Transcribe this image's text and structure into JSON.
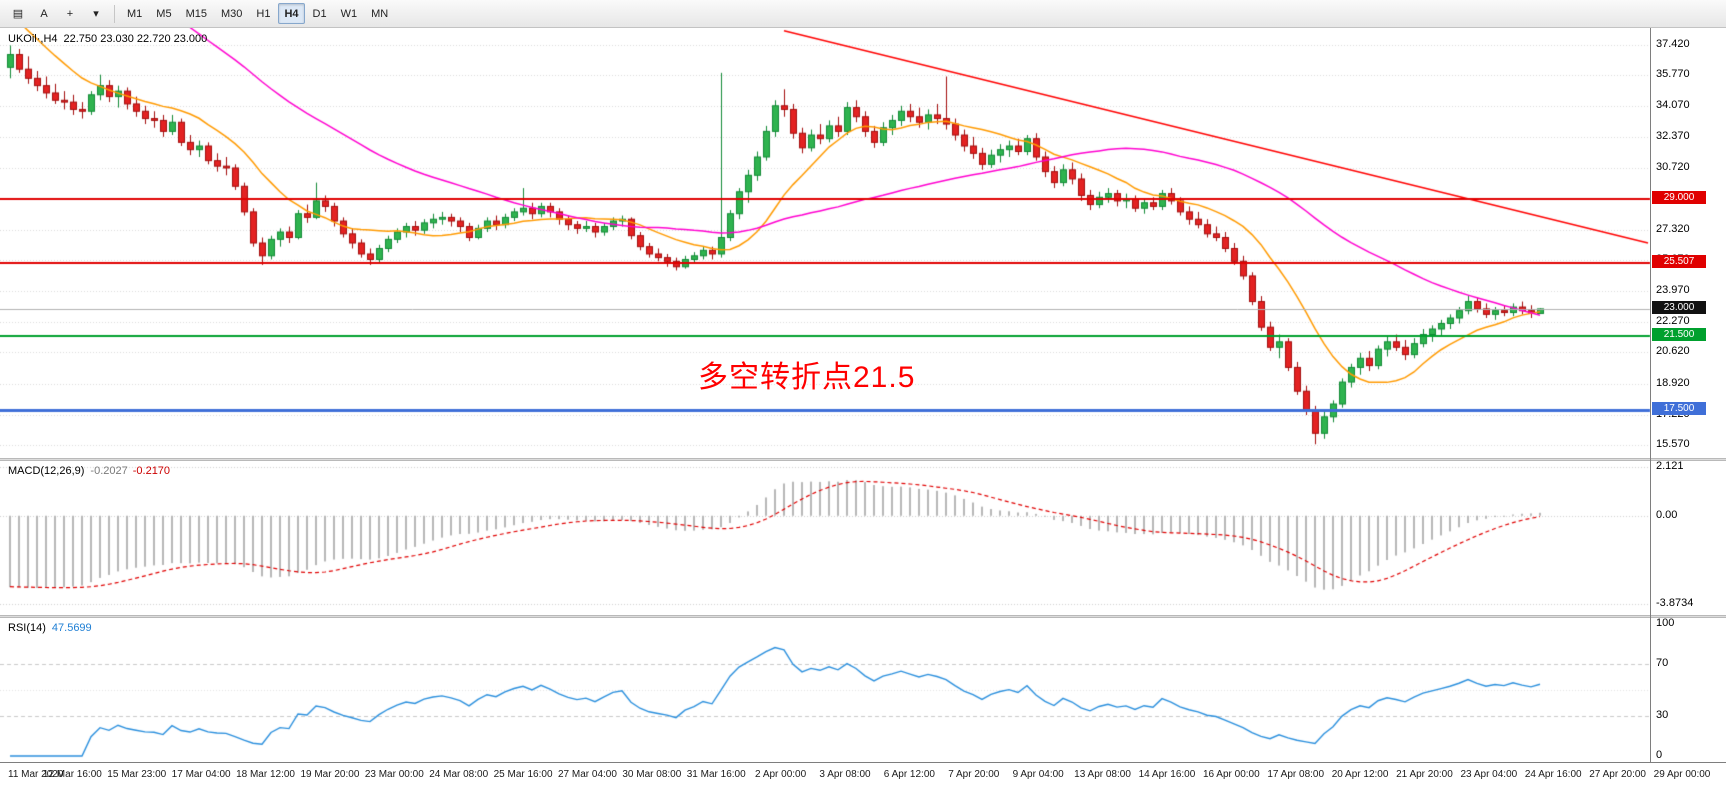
{
  "window": {
    "symbol_label": "UKOil·,H4",
    "ohlc_text": "22.750 23.030 22.720 23.000"
  },
  "toolbar": {
    "left_buttons": [
      {
        "id": "chart-type",
        "glyph": "▤",
        "name": "chart-type-button"
      },
      {
        "id": "text-tool",
        "glyph": "A",
        "name": "text-tool-button"
      },
      {
        "id": "crosshair",
        "glyph": "+",
        "name": "crosshair-tool-button"
      },
      {
        "id": "draw-tools",
        "glyph": "▾",
        "name": "draw-tools-dropdown"
      }
    ],
    "timeframes": [
      "M1",
      "M5",
      "M15",
      "M30",
      "H1",
      "H4",
      "D1",
      "W1",
      "MN"
    ],
    "active_timeframe": "H4"
  },
  "chart": {
    "price_axis_labels": [
      "37.420",
      "35.770",
      "34.070",
      "32.370",
      "30.720",
      "29.020",
      "27.320",
      "25.670",
      "23.970",
      "22.270",
      "20.620",
      "18.920",
      "17.220",
      "15.570"
    ],
    "levels": [
      {
        "value": 29.0,
        "label": "29.000",
        "line_color": "#e00000",
        "badge_color": "#e00000",
        "line_width": 2
      },
      {
        "value": 25.507,
        "label": "25.507",
        "line_color": "#e00000",
        "badge_color": "#e00000",
        "line_width": 2
      },
      {
        "value": 23.0,
        "label": "23.000",
        "line_color": "#b0b0b0",
        "badge_color": "#111111",
        "line_width": 1
      },
      {
        "value": 21.5,
        "label": "21.500",
        "line_color": "#00a02e",
        "badge_color": "#00a02e",
        "line_width": 2
      },
      {
        "value": 17.5,
        "label": "17.500",
        "line_color": "#3f6fd8",
        "badge_color": "#3f6fd8",
        "line_width": 3
      }
    ],
    "annotation": {
      "text": "多空转折点21.5",
      "color": "#ff0000"
    },
    "time_axis_labels": [
      "11 Mar 2020",
      "12 Mar 16:00",
      "15 Mar 23:00",
      "17 Mar 04:00",
      "18 Mar 12:00",
      "19 Mar 20:00",
      "23 Mar 00:00",
      "24 Mar 08:00",
      "25 Mar 16:00",
      "27 Mar 04:00",
      "30 Mar 08:00",
      "31 Mar 16:00",
      "2 Apr 00:00",
      "3 Apr 08:00",
      "6 Apr 12:00",
      "7 Apr 20:00",
      "9 Apr 04:00",
      "13 Apr 08:00",
      "14 Apr 16:00",
      "16 Apr 00:00",
      "17 Apr 08:00",
      "20 Apr 12:00",
      "21 Apr 20:00",
      "23 Apr 04:00",
      "24 Apr 16:00",
      "27 Apr 20:00",
      "29 Apr 00:00"
    ]
  },
  "macd_panel": {
    "label": "MACD(12,26,9)",
    "value_main": "-0.2027",
    "value_signal": "-0.2170",
    "scale_labels": [
      "2.121",
      "0.00",
      "-3.8734"
    ]
  },
  "rsi_panel": {
    "label": "RSI(14)",
    "value": "47.5699",
    "scale_labels": [
      "100",
      "70",
      "30",
      "0"
    ]
  },
  "chart_data": {
    "type": "candlestick",
    "symbol": "UKOil",
    "period": "H4",
    "last_bar": {
      "open": 22.75,
      "high": 23.03,
      "low": 22.72,
      "close": 23.0
    },
    "y_range": [
      14.85,
      38.35
    ],
    "first_bar_x": 10,
    "bar_spacing": 9,
    "candles": [
      [
        36.2,
        37.4,
        35.6,
        36.9
      ],
      [
        36.9,
        37.2,
        35.9,
        36.1
      ],
      [
        36.1,
        36.8,
        35.3,
        35.6
      ],
      [
        35.6,
        36.0,
        34.9,
        35.2
      ],
      [
        35.2,
        35.7,
        34.5,
        34.8
      ],
      [
        34.8,
        35.3,
        34.2,
        34.4
      ],
      [
        34.4,
        34.9,
        33.9,
        34.3
      ],
      [
        34.3,
        34.7,
        33.6,
        33.9
      ],
      [
        33.9,
        34.3,
        33.4,
        33.8
      ],
      [
        33.8,
        34.9,
        33.6,
        34.7
      ],
      [
        34.7,
        35.8,
        34.4,
        35.2
      ],
      [
        35.2,
        35.5,
        34.3,
        34.6
      ],
      [
        34.6,
        35.2,
        34.0,
        34.9
      ],
      [
        34.9,
        35.1,
        33.9,
        34.2
      ],
      [
        34.2,
        34.6,
        33.5,
        33.8
      ],
      [
        33.8,
        34.1,
        33.1,
        33.4
      ],
      [
        33.4,
        33.8,
        32.9,
        33.3
      ],
      [
        33.3,
        33.6,
        32.4,
        32.7
      ],
      [
        32.7,
        33.6,
        32.5,
        33.2
      ],
      [
        33.2,
        33.4,
        31.9,
        32.1
      ],
      [
        32.1,
        32.5,
        31.4,
        31.7
      ],
      [
        31.7,
        32.2,
        31.3,
        31.9
      ],
      [
        31.9,
        32.1,
        30.9,
        31.1
      ],
      [
        31.1,
        31.5,
        30.5,
        30.8
      ],
      [
        30.8,
        31.3,
        30.3,
        30.7
      ],
      [
        30.7,
        30.9,
        29.5,
        29.7
      ],
      [
        29.7,
        29.9,
        28.1,
        28.3
      ],
      [
        28.3,
        28.5,
        26.4,
        26.6
      ],
      [
        26.6,
        26.9,
        25.4,
        25.9
      ],
      [
        25.9,
        27.0,
        25.7,
        26.8
      ],
      [
        26.8,
        27.4,
        26.4,
        27.2
      ],
      [
        27.2,
        27.5,
        26.6,
        26.9
      ],
      [
        26.9,
        28.4,
        26.8,
        28.2
      ],
      [
        28.2,
        28.7,
        27.7,
        28.0
      ],
      [
        28.0,
        29.9,
        27.9,
        28.9
      ],
      [
        28.9,
        29.2,
        28.3,
        28.6
      ],
      [
        28.6,
        28.8,
        27.5,
        27.8
      ],
      [
        27.8,
        28.0,
        26.9,
        27.1
      ],
      [
        27.1,
        27.4,
        26.3,
        26.6
      ],
      [
        26.6,
        26.8,
        25.8,
        26.0
      ],
      [
        26.0,
        26.3,
        25.4,
        25.7
      ],
      [
        25.7,
        26.5,
        25.5,
        26.3
      ],
      [
        26.3,
        27.0,
        26.1,
        26.8
      ],
      [
        26.8,
        27.4,
        26.6,
        27.2
      ],
      [
        27.2,
        27.7,
        26.9,
        27.5
      ],
      [
        27.5,
        27.8,
        27.0,
        27.3
      ],
      [
        27.3,
        27.9,
        27.1,
        27.7
      ],
      [
        27.7,
        28.2,
        27.4,
        27.9
      ],
      [
        27.9,
        28.3,
        27.6,
        28.0
      ],
      [
        28.0,
        28.2,
        27.5,
        27.8
      ],
      [
        27.8,
        28.0,
        27.2,
        27.5
      ],
      [
        27.5,
        27.7,
        26.7,
        26.9
      ],
      [
        26.9,
        27.6,
        26.8,
        27.4
      ],
      [
        27.4,
        28.0,
        27.2,
        27.8
      ],
      [
        27.8,
        28.1,
        27.3,
        27.6
      ],
      [
        27.6,
        28.2,
        27.4,
        28.0
      ],
      [
        28.0,
        28.5,
        27.8,
        28.3
      ],
      [
        28.3,
        29.6,
        28.1,
        28.5
      ],
      [
        28.5,
        28.8,
        27.9,
        28.2
      ],
      [
        28.2,
        28.8,
        28.0,
        28.6
      ],
      [
        28.6,
        28.8,
        28.0,
        28.3
      ],
      [
        28.3,
        28.5,
        27.6,
        27.9
      ],
      [
        27.9,
        28.1,
        27.3,
        27.6
      ],
      [
        27.6,
        27.8,
        27.1,
        27.4
      ],
      [
        27.4,
        27.8,
        27.2,
        27.5
      ],
      [
        27.5,
        27.7,
        26.9,
        27.2
      ],
      [
        27.2,
        27.7,
        27.0,
        27.5
      ],
      [
        27.5,
        28.0,
        27.3,
        27.8
      ],
      [
        27.8,
        28.1,
        27.5,
        27.9
      ],
      [
        27.9,
        28.0,
        26.8,
        27.0
      ],
      [
        27.0,
        27.2,
        26.2,
        26.4
      ],
      [
        26.4,
        26.6,
        25.8,
        26.0
      ],
      [
        26.0,
        26.3,
        25.6,
        25.8
      ],
      [
        25.8,
        26.0,
        25.3,
        25.6
      ],
      [
        25.6,
        25.8,
        25.1,
        25.3
      ],
      [
        25.3,
        25.9,
        25.2,
        25.7
      ],
      [
        25.7,
        26.1,
        25.5,
        25.9
      ],
      [
        25.9,
        26.4,
        25.7,
        26.2
      ],
      [
        26.2,
        26.4,
        25.7,
        26.0
      ],
      [
        26.0,
        35.9,
        25.8,
        26.9
      ],
      [
        26.9,
        28.4,
        26.7,
        28.2
      ],
      [
        28.2,
        29.6,
        27.9,
        29.4
      ],
      [
        29.4,
        30.6,
        28.8,
        30.3
      ],
      [
        30.3,
        31.6,
        30.0,
        31.3
      ],
      [
        31.3,
        33.0,
        31.1,
        32.7
      ],
      [
        32.7,
        34.4,
        32.4,
        34.1
      ],
      [
        34.1,
        35.0,
        33.5,
        33.9
      ],
      [
        33.9,
        34.2,
        32.3,
        32.6
      ],
      [
        32.6,
        32.9,
        31.5,
        31.8
      ],
      [
        31.8,
        32.8,
        31.6,
        32.5
      ],
      [
        32.5,
        33.1,
        32.0,
        32.3
      ],
      [
        32.3,
        33.3,
        32.1,
        33.0
      ],
      [
        33.0,
        33.5,
        32.4,
        32.7
      ],
      [
        32.7,
        34.3,
        32.5,
        34.0
      ],
      [
        34.0,
        34.4,
        33.2,
        33.5
      ],
      [
        33.5,
        33.8,
        32.4,
        32.7
      ],
      [
        32.7,
        33.0,
        31.8,
        32.1
      ],
      [
        32.1,
        33.2,
        31.9,
        32.9
      ],
      [
        32.9,
        33.6,
        32.5,
        33.3
      ],
      [
        33.3,
        34.1,
        33.0,
        33.8
      ],
      [
        33.8,
        34.2,
        33.2,
        33.5
      ],
      [
        33.5,
        34.0,
        32.9,
        33.2
      ],
      [
        33.2,
        33.9,
        32.8,
        33.6
      ],
      [
        33.6,
        34.2,
        33.1,
        33.4
      ],
      [
        33.4,
        35.7,
        32.8,
        33.1
      ],
      [
        33.1,
        33.4,
        32.2,
        32.5
      ],
      [
        32.5,
        32.8,
        31.6,
        31.9
      ],
      [
        31.9,
        32.4,
        31.2,
        31.5
      ],
      [
        31.5,
        31.8,
        30.6,
        30.9
      ],
      [
        30.9,
        31.7,
        30.7,
        31.4
      ],
      [
        31.4,
        32.0,
        31.0,
        31.7
      ],
      [
        31.7,
        32.2,
        31.3,
        31.9
      ],
      [
        31.9,
        32.3,
        31.4,
        31.6
      ],
      [
        31.6,
        32.5,
        31.4,
        32.3
      ],
      [
        32.3,
        32.6,
        31.1,
        31.3
      ],
      [
        31.3,
        31.6,
        30.2,
        30.5
      ],
      [
        30.5,
        30.8,
        29.6,
        29.9
      ],
      [
        29.9,
        30.9,
        29.7,
        30.6
      ],
      [
        30.6,
        31.0,
        29.8,
        30.1
      ],
      [
        30.1,
        30.4,
        28.9,
        29.2
      ],
      [
        29.2,
        29.5,
        28.4,
        28.7
      ],
      [
        28.7,
        29.4,
        28.5,
        29.1
      ],
      [
        29.1,
        29.6,
        28.8,
        29.3
      ],
      [
        29.3,
        29.5,
        28.6,
        28.9
      ],
      [
        28.9,
        29.3,
        28.5,
        29.0
      ],
      [
        29.0,
        29.2,
        28.3,
        28.5
      ],
      [
        28.5,
        29.0,
        28.2,
        28.8
      ],
      [
        28.8,
        29.1,
        28.4,
        28.6
      ],
      [
        28.6,
        29.5,
        28.4,
        29.3
      ],
      [
        29.3,
        29.6,
        28.7,
        28.9
      ],
      [
        28.9,
        29.1,
        28.1,
        28.3
      ],
      [
        28.3,
        28.6,
        27.6,
        27.9
      ],
      [
        27.9,
        28.3,
        27.4,
        27.6
      ],
      [
        27.6,
        27.9,
        26.9,
        27.1
      ],
      [
        27.1,
        27.5,
        26.7,
        26.9
      ],
      [
        26.9,
        27.2,
        26.1,
        26.3
      ],
      [
        26.3,
        26.6,
        25.4,
        25.6
      ],
      [
        25.6,
        25.9,
        24.6,
        24.8
      ],
      [
        24.8,
        25.0,
        23.2,
        23.4
      ],
      [
        23.4,
        23.7,
        21.8,
        22.0
      ],
      [
        22.0,
        22.3,
        20.7,
        20.9
      ],
      [
        20.9,
        21.6,
        20.3,
        21.2
      ],
      [
        21.2,
        21.4,
        19.6,
        19.8
      ],
      [
        19.8,
        20.1,
        18.3,
        18.5
      ],
      [
        18.5,
        18.8,
        17.2,
        17.4
      ],
      [
        17.4,
        17.7,
        15.6,
        16.2
      ],
      [
        16.2,
        17.4,
        15.9,
        17.1
      ],
      [
        17.1,
        18.0,
        16.8,
        17.8
      ],
      [
        17.8,
        19.2,
        17.6,
        19.0
      ],
      [
        19.0,
        20.0,
        18.7,
        19.8
      ],
      [
        19.8,
        20.6,
        19.4,
        20.3
      ],
      [
        20.3,
        20.7,
        19.6,
        19.9
      ],
      [
        19.9,
        21.0,
        19.7,
        20.8
      ],
      [
        20.8,
        21.5,
        20.4,
        21.2
      ],
      [
        21.2,
        21.6,
        20.7,
        20.9
      ],
      [
        20.9,
        21.3,
        20.2,
        20.5
      ],
      [
        20.5,
        21.4,
        20.3,
        21.1
      ],
      [
        21.1,
        21.9,
        20.9,
        21.6
      ],
      [
        21.6,
        22.1,
        21.2,
        21.9
      ],
      [
        21.9,
        22.4,
        21.5,
        22.2
      ],
      [
        22.2,
        22.7,
        21.9,
        22.5
      ],
      [
        22.5,
        23.1,
        22.2,
        22.9
      ],
      [
        22.9,
        23.7,
        22.7,
        23.4
      ],
      [
        23.4,
        23.6,
        22.8,
        23.0
      ],
      [
        23.0,
        23.3,
        22.5,
        22.7
      ],
      [
        22.7,
        23.1,
        22.4,
        22.9
      ],
      [
        22.9,
        23.2,
        22.6,
        22.8
      ],
      [
        22.8,
        23.3,
        22.6,
        23.1
      ],
      [
        23.1,
        23.4,
        22.7,
        22.9
      ],
      [
        22.9,
        23.2,
        22.5,
        22.75
      ],
      [
        22.75,
        23.03,
        22.72,
        23.0
      ]
    ],
    "prehistory": {
      "start": 60,
      "end": 37,
      "count": 50
    },
    "ma_fast": {
      "period": 12,
      "color": "#ff9a00"
    },
    "ma_slow": {
      "period": 44,
      "color": "#ff00d0"
    },
    "trendline": {
      "from_bar": 86,
      "from_price": 38.2,
      "to_bar": 182,
      "to_price": 26.6,
      "color": "#ff0000"
    },
    "macd": {
      "fast": 12,
      "slow": 26,
      "signal": 9,
      "hist_color": "#b7b7b7",
      "signal_color": "#e00000",
      "y_range": [
        -4.35,
        2.4
      ]
    },
    "rsi": {
      "period": 14,
      "color": "#2a8fdd",
      "levels": [
        70,
        30
      ]
    },
    "colors": {
      "up": "#2fb34f",
      "up_stroke": "#128a36",
      "down": "#e32222",
      "down_stroke": "#a30d0d",
      "grid": "#d9d9d9",
      "bg": "#ffffff"
    }
  }
}
